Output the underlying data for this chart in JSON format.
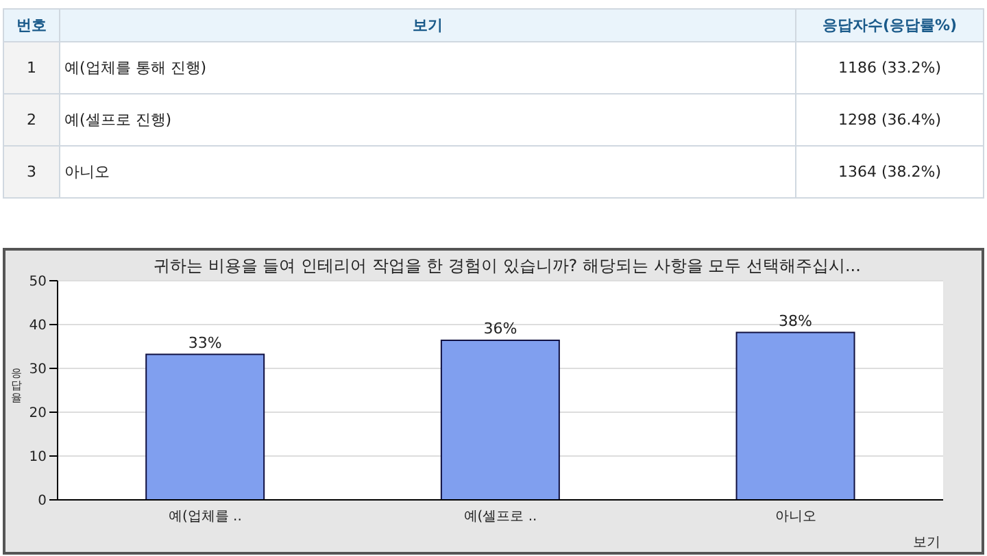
{
  "chart_data": {
    "type": "bar",
    "title": "귀하는 비용을 들여 인테리어 작업을 한 경험이 있습니까? 해당되는 사항을 모두 선택해주십시...",
    "xlabel": "보기",
    "ylabel": "응답율",
    "categories": [
      "예(업체를 ..",
      "예(셀프로 ..",
      "아니오"
    ],
    "values": [
      33.2,
      36.4,
      38.2
    ],
    "value_labels": [
      "33%",
      "36%",
      "38%"
    ],
    "color": "#809fef",
    "ylim": [
      0,
      50
    ],
    "yticks": [
      0,
      10,
      20,
      30,
      40,
      50
    ],
    "grid": "y",
    "annotations": [
      "번호",
      "보기",
      "응답자수(응답률%)",
      "1",
      "예(업체를 통해 진행)",
      "1186 (33.2%)",
      "2",
      "예(셀프로 진행)",
      "1298 (36.4%)",
      "3",
      "아니오",
      "1364 (38.2%)"
    ]
  }
}
